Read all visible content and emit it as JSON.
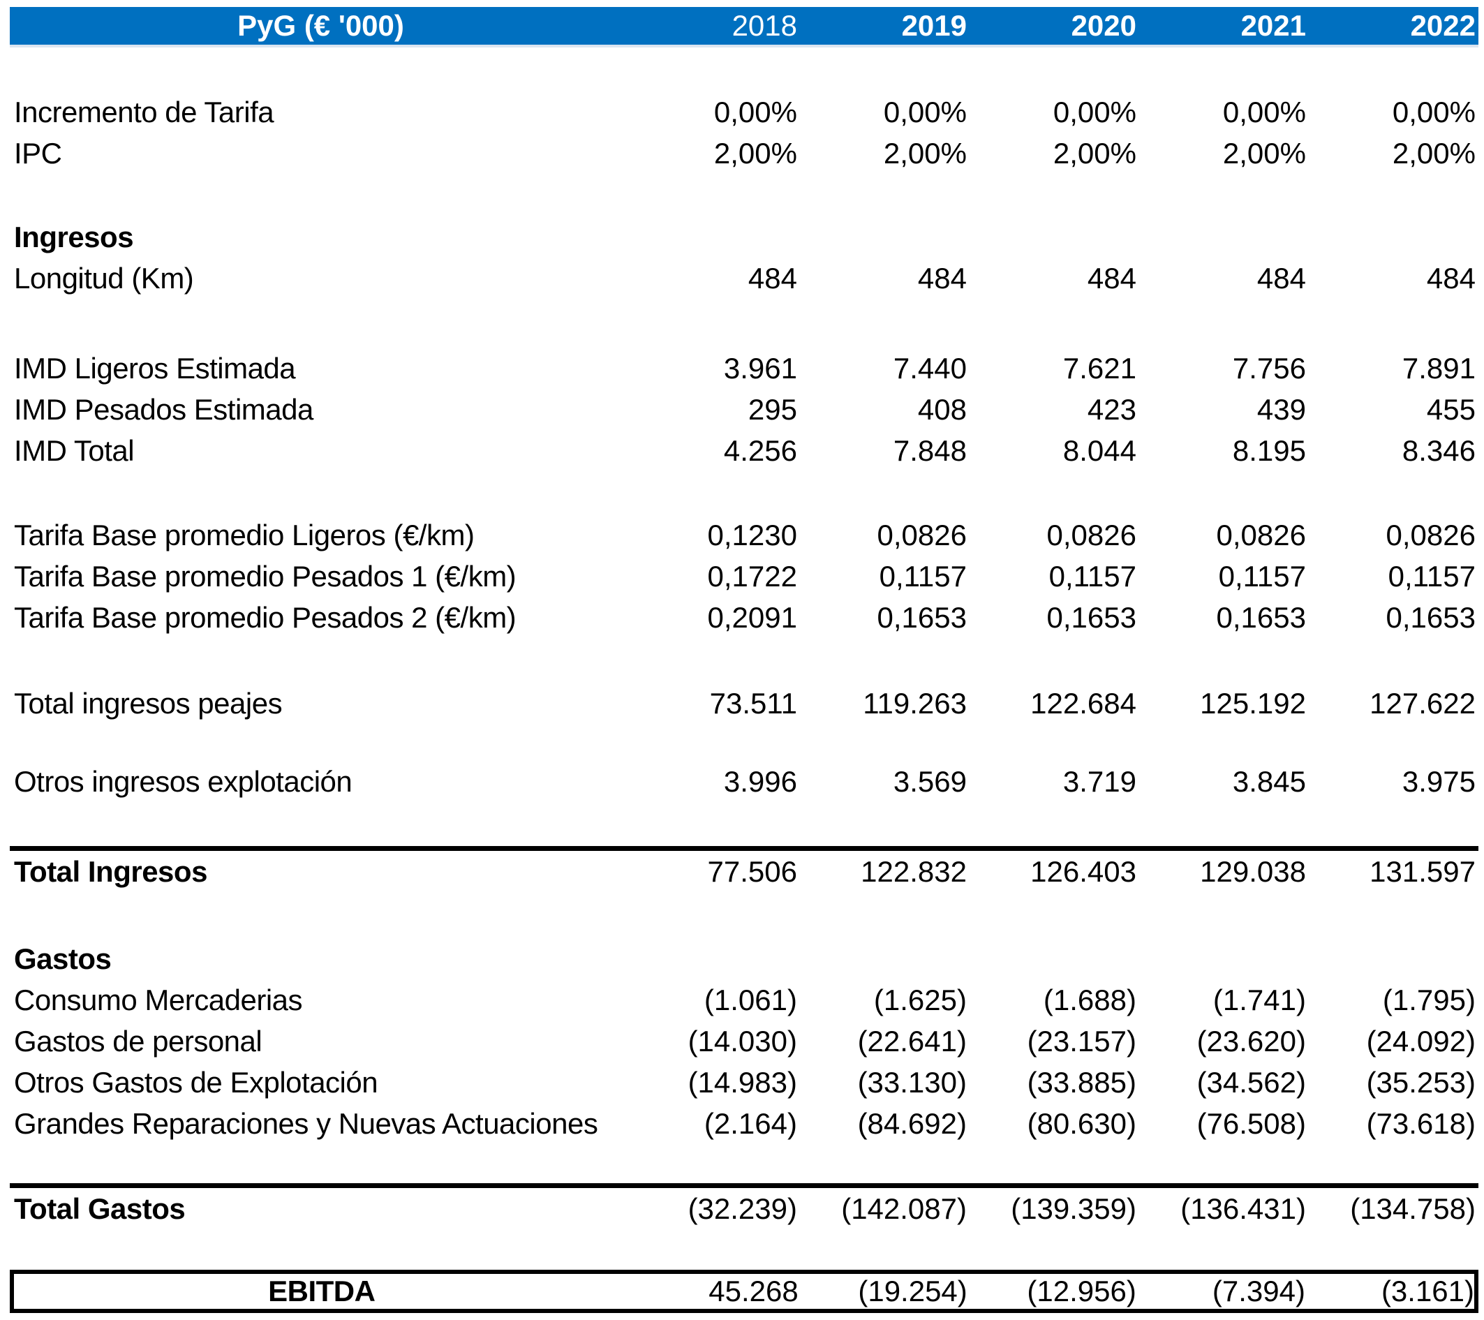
{
  "header": {
    "title": "PyG (€ '000)",
    "years": [
      "2018",
      "2019",
      "2020",
      "2021",
      "2022"
    ]
  },
  "colors": {
    "header_bg": "#0070C0",
    "header_text": "#FFFFFF",
    "header_underline": "#DBE5F1",
    "rule_border": "#000000"
  },
  "rows": [
    {
      "kind": "spacer",
      "h": 63
    },
    {
      "kind": "data",
      "label": "Incremento de Tarifa",
      "values": [
        "0,00%",
        "0,00%",
        "0,00%",
        "0,00%",
        "0,00%"
      ]
    },
    {
      "kind": "data",
      "label": "IPC",
      "values": [
        "2,00%",
        "2,00%",
        "2,00%",
        "2,00%",
        "2,00%"
      ]
    },
    {
      "kind": "spacer",
      "h": 61
    },
    {
      "kind": "section",
      "label": "Ingresos",
      "values": [
        "",
        "",
        "",
        "",
        ""
      ]
    },
    {
      "kind": "data",
      "label": "Longitud (Km)",
      "values": [
        "484",
        "484",
        "484",
        "484",
        "484"
      ]
    },
    {
      "kind": "spacer",
      "h": 70
    },
    {
      "kind": "data",
      "label": "IMD Ligeros Estimada",
      "values": [
        "3.961",
        "7.440",
        "7.621",
        "7.756",
        "7.891"
      ]
    },
    {
      "kind": "data",
      "label": "IMD Pesados Estimada",
      "values": [
        "295",
        "408",
        "423",
        "439",
        "455"
      ]
    },
    {
      "kind": "data",
      "label": "IMD Total",
      "values": [
        "4.256",
        "7.848",
        "8.044",
        "8.195",
        "8.346"
      ]
    },
    {
      "kind": "spacer",
      "h": 62
    },
    {
      "kind": "data",
      "label": "Tarifa Base promedio Ligeros (€/km)",
      "values": [
        "0,1230",
        "0,0826",
        "0,0826",
        "0,0826",
        "0,0826"
      ]
    },
    {
      "kind": "data",
      "label": "Tarifa Base promedio Pesados 1 (€/km)",
      "values": [
        "0,1722",
        "0,1157",
        "0,1157",
        "0,1157",
        "0,1157"
      ]
    },
    {
      "kind": "data",
      "label": "Tarifa Base promedio Pesados 2 (€/km)",
      "values": [
        "0,2091",
        "0,1653",
        "0,1653",
        "0,1653",
        "0,1653"
      ]
    },
    {
      "kind": "spacer",
      "h": 64
    },
    {
      "kind": "data",
      "label": "Total ingresos peajes",
      "values": [
        "73.511",
        "119.263",
        "122.684",
        "125.192",
        "127.622"
      ]
    },
    {
      "kind": "spacer",
      "h": 53
    },
    {
      "kind": "data",
      "label": "Otros ingresos explotación",
      "values": [
        "3.996",
        "3.569",
        "3.719",
        "3.845",
        "3.975"
      ]
    },
    {
      "kind": "spacer",
      "h": 63
    },
    {
      "kind": "total",
      "label": "Total Ingresos",
      "values": [
        "77.506",
        "122.832",
        "126.403",
        "129.038",
        "131.597"
      ]
    },
    {
      "kind": "spacer",
      "h": 66
    },
    {
      "kind": "section",
      "label": "Gastos",
      "values": [
        "",
        "",
        "",
        "",
        ""
      ]
    },
    {
      "kind": "data",
      "label": "Consumo Mercaderias",
      "values": [
        "(1.061)",
        "(1.625)",
        "(1.688)",
        "(1.741)",
        "(1.795)"
      ]
    },
    {
      "kind": "data",
      "label": "Gastos de personal",
      "values": [
        "(14.030)",
        "(22.641)",
        "(23.157)",
        "(23.620)",
        "(24.092)"
      ]
    },
    {
      "kind": "data",
      "label": "Otros Gastos de Explotación",
      "values": [
        "(14.983)",
        "(33.130)",
        "(33.885)",
        "(34.562)",
        "(35.253)"
      ]
    },
    {
      "kind": "data",
      "label": "Grandes Reparaciones y Nuevas Actuaciones",
      "values": [
        "(2.164)",
        "(84.692)",
        "(80.630)",
        "(76.508)",
        "(73.618)"
      ]
    },
    {
      "kind": "spacer",
      "h": 56
    },
    {
      "kind": "total",
      "label": "Total Gastos",
      "values": [
        "(32.239)",
        "(142.087)",
        "(139.359)",
        "(136.431)",
        "(134.758)"
      ]
    },
    {
      "kind": "spacer",
      "h": 58
    },
    {
      "kind": "ebitda",
      "label": "EBITDA",
      "values": [
        "45.268",
        "(19.254)",
        "(12.956)",
        "(7.394)",
        "(3.161)"
      ]
    }
  ]
}
